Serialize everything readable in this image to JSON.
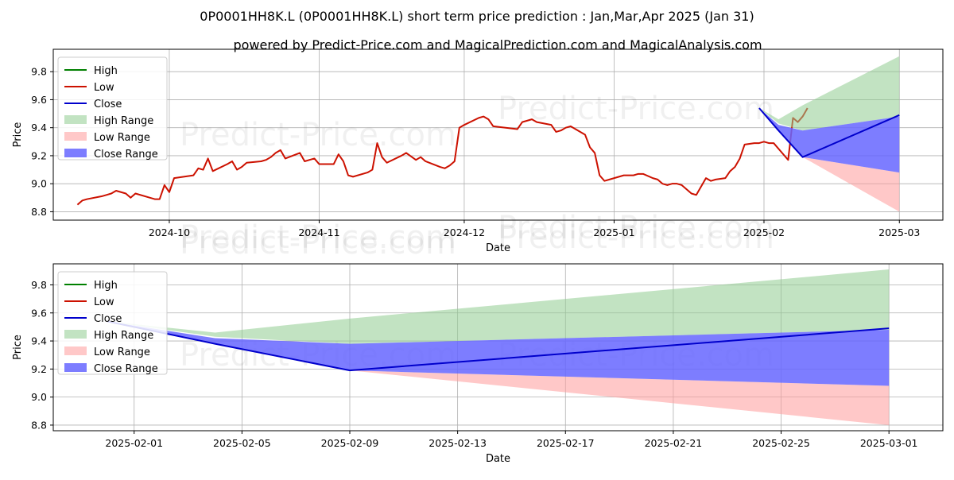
{
  "title": "0P0001HH8K.L (0P0001HH8K.L) short term price prediction : Jan,Mar,Apr 2025 (Jan 31)",
  "subtitle": "powered by Predict-Price.com and MagicalPrediction.com and MagicalAnalysis.com",
  "watermark": "Predict-Price.com",
  "legend_labels": [
    "High",
    "Low",
    "Close",
    "High Range",
    "Low Range",
    "Close Range"
  ],
  "colors": {
    "high": "#008000",
    "low": "#cc1100",
    "close": "#0000cc",
    "high_range": "#8fcc8f",
    "low_range": "#ff9a9a",
    "close_range": "#6666ff"
  },
  "chart_data": [
    {
      "type": "line",
      "xlabel": "Date",
      "ylabel": "Price",
      "xlim": [
        "2024-09-07",
        "2025-03-10"
      ],
      "ylim": [
        8.74,
        9.96
      ],
      "yticks": [
        8.8,
        9.0,
        9.2,
        9.4,
        9.6,
        9.8
      ],
      "ytick_labels": [
        "8.8",
        "9.0",
        "9.2",
        "9.4",
        "9.6",
        "9.8"
      ],
      "xticks": [
        "2024-10-01",
        "2024-11-01",
        "2024-12-01",
        "2025-01-01",
        "2025-02-01",
        "2025-03-01"
      ],
      "xtick_labels": [
        "2024-10",
        "2024-11",
        "2024-12",
        "2025-01",
        "2025-02",
        "2025-03"
      ],
      "grid": true,
      "legend_position": "upper-left",
      "series": [
        {
          "name": "Low",
          "style": "line",
          "points": [
            [
              "2024-09-12",
              8.85
            ],
            [
              "2024-09-13",
              8.88
            ],
            [
              "2024-09-14",
              8.89
            ],
            [
              "2024-09-17",
              8.91
            ],
            [
              "2024-09-18",
              8.92
            ],
            [
              "2024-09-19",
              8.93
            ],
            [
              "2024-09-20",
              8.95
            ],
            [
              "2024-09-21",
              8.94
            ],
            [
              "2024-09-22",
              8.93
            ],
            [
              "2024-09-23",
              8.9
            ],
            [
              "2024-09-24",
              8.93
            ],
            [
              "2024-09-27",
              8.9
            ],
            [
              "2024-09-28",
              8.89
            ],
            [
              "2024-09-29",
              8.89
            ],
            [
              "2024-09-30",
              8.99
            ],
            [
              "2024-10-01",
              8.94
            ],
            [
              "2024-10-02",
              9.04
            ],
            [
              "2024-10-04",
              9.05
            ],
            [
              "2024-10-06",
              9.06
            ],
            [
              "2024-10-07",
              9.11
            ],
            [
              "2024-10-08",
              9.1
            ],
            [
              "2024-10-09",
              9.18
            ],
            [
              "2024-10-10",
              9.09
            ],
            [
              "2024-10-13",
              9.14
            ],
            [
              "2024-10-14",
              9.16
            ],
            [
              "2024-10-15",
              9.1
            ],
            [
              "2024-10-16",
              9.12
            ],
            [
              "2024-10-17",
              9.15
            ],
            [
              "2024-10-20",
              9.16
            ],
            [
              "2024-10-21",
              9.17
            ],
            [
              "2024-10-22",
              9.19
            ],
            [
              "2024-10-23",
              9.22
            ],
            [
              "2024-10-24",
              9.24
            ],
            [
              "2024-10-25",
              9.18
            ],
            [
              "2024-10-28",
              9.22
            ],
            [
              "2024-10-29",
              9.16
            ],
            [
              "2024-10-30",
              9.17
            ],
            [
              "2024-10-31",
              9.18
            ],
            [
              "2024-11-01",
              9.14
            ],
            [
              "2024-11-04",
              9.14
            ],
            [
              "2024-11-05",
              9.21
            ],
            [
              "2024-11-06",
              9.16
            ],
            [
              "2024-11-07",
              9.06
            ],
            [
              "2024-11-08",
              9.05
            ],
            [
              "2024-11-11",
              9.08
            ],
            [
              "2024-11-12",
              9.1
            ],
            [
              "2024-11-13",
              9.29
            ],
            [
              "2024-11-14",
              9.19
            ],
            [
              "2024-11-15",
              9.15
            ],
            [
              "2024-11-18",
              9.2
            ],
            [
              "2024-11-19",
              9.22
            ],
            [
              "2024-11-21",
              9.17
            ],
            [
              "2024-11-22",
              9.19
            ],
            [
              "2024-11-23",
              9.16
            ],
            [
              "2024-11-26",
              9.12
            ],
            [
              "2024-11-27",
              9.11
            ],
            [
              "2024-11-28",
              9.13
            ],
            [
              "2024-11-29",
              9.16
            ],
            [
              "2024-11-30",
              9.4
            ],
            [
              "2024-12-01",
              9.42
            ],
            [
              "2024-12-04",
              9.47
            ],
            [
              "2024-12-05",
              9.48
            ],
            [
              "2024-12-06",
              9.46
            ],
            [
              "2024-12-07",
              9.41
            ],
            [
              "2024-12-12",
              9.39
            ],
            [
              "2024-12-13",
              9.44
            ],
            [
              "2024-12-14",
              9.45
            ],
            [
              "2024-12-15",
              9.46
            ],
            [
              "2024-12-16",
              9.44
            ],
            [
              "2024-12-19",
              9.42
            ],
            [
              "2024-12-20",
              9.37
            ],
            [
              "2024-12-21",
              9.38
            ],
            [
              "2024-12-22",
              9.4
            ],
            [
              "2024-12-23",
              9.41
            ],
            [
              "2024-12-26",
              9.35
            ],
            [
              "2024-12-27",
              9.26
            ],
            [
              "2024-12-28",
              9.22
            ],
            [
              "2024-12-29",
              9.06
            ],
            [
              "2024-12-30",
              9.02
            ],
            [
              "2025-01-03",
              9.06
            ],
            [
              "2025-01-04",
              9.06
            ],
            [
              "2025-01-05",
              9.06
            ],
            [
              "2025-01-06",
              9.07
            ],
            [
              "2025-01-07",
              9.07
            ],
            [
              "2025-01-09",
              9.04
            ],
            [
              "2025-01-10",
              9.03
            ],
            [
              "2025-01-11",
              9.0
            ],
            [
              "2025-01-12",
              8.99
            ],
            [
              "2025-01-13",
              9.0
            ],
            [
              "2025-01-14",
              9.0
            ],
            [
              "2025-01-15",
              8.99
            ],
            [
              "2025-01-17",
              8.93
            ],
            [
              "2025-01-18",
              8.92
            ],
            [
              "2025-01-20",
              9.04
            ],
            [
              "2025-01-21",
              9.02
            ],
            [
              "2025-01-22",
              9.03
            ],
            [
              "2025-01-24",
              9.04
            ],
            [
              "2025-01-25",
              9.09
            ],
            [
              "2025-01-26",
              9.12
            ],
            [
              "2025-01-27",
              9.18
            ],
            [
              "2025-01-28",
              9.28
            ],
            [
              "2025-01-30",
              9.29
            ],
            [
              "2025-01-31",
              9.29
            ],
            [
              "2025-02-01",
              9.3
            ],
            [
              "2025-02-02",
              9.29
            ],
            [
              "2025-02-03",
              9.29
            ],
            [
              "2025-02-06",
              9.17
            ],
            [
              "2025-02-07",
              9.47
            ],
            [
              "2025-02-08",
              9.44
            ],
            [
              "2025-02-09",
              9.48
            ],
            [
              "2025-02-10",
              9.54
            ]
          ]
        },
        {
          "name": "High Range",
          "style": "band",
          "points": [
            [
              "2025-01-31",
              9.54,
              9.54
            ],
            [
              "2025-02-04",
              9.43,
              9.46
            ],
            [
              "2025-02-09",
              9.38,
              9.56
            ],
            [
              "2025-03-01",
              9.48,
              9.91
            ]
          ]
        },
        {
          "name": "Low Range",
          "style": "band",
          "points": [
            [
              "2025-01-31",
              9.54,
              9.54
            ],
            [
              "2025-02-09",
              9.19,
              9.19
            ],
            [
              "2025-03-01",
              8.8,
              9.08
            ]
          ]
        },
        {
          "name": "Close Range",
          "style": "band",
          "points": [
            [
              "2025-01-31",
              9.54,
              9.54
            ],
            [
              "2025-02-04",
              9.38,
              9.42
            ],
            [
              "2025-02-09",
              9.19,
              9.38
            ],
            [
              "2025-03-01",
              9.08,
              9.48
            ]
          ]
        },
        {
          "name": "Close",
          "style": "line",
          "points": [
            [
              "2025-01-31",
              9.54
            ],
            [
              "2025-02-04",
              9.38
            ],
            [
              "2025-02-09",
              9.19
            ],
            [
              "2025-03-01",
              9.49
            ]
          ]
        }
      ]
    },
    {
      "type": "line",
      "xlabel": "Date",
      "ylabel": "Price",
      "xlim": [
        "2025-01-29",
        "2025-03-03"
      ],
      "ylim": [
        8.76,
        9.95
      ],
      "yticks": [
        8.8,
        9.0,
        9.2,
        9.4,
        9.6,
        9.8
      ],
      "ytick_labels": [
        "8.8",
        "9.0",
        "9.2",
        "9.4",
        "9.6",
        "9.8"
      ],
      "xticks": [
        "2025-02-01",
        "2025-02-05",
        "2025-02-09",
        "2025-02-13",
        "2025-02-17",
        "2025-02-21",
        "2025-02-25",
        "2025-03-01"
      ],
      "xtick_labels": [
        "2025-02-01",
        "2025-02-05",
        "2025-02-09",
        "2025-02-13",
        "2025-02-17",
        "2025-02-21",
        "2025-02-25",
        "2025-03-01"
      ],
      "grid": true,
      "legend_position": "upper-left",
      "series": [
        {
          "name": "High Range",
          "style": "band",
          "points": [
            [
              "2025-01-31",
              9.54,
              9.54
            ],
            [
              "2025-02-04",
              9.43,
              9.46
            ],
            [
              "2025-02-09",
              9.38,
              9.56
            ],
            [
              "2025-03-01",
              9.48,
              9.91
            ]
          ]
        },
        {
          "name": "Low Range",
          "style": "band",
          "points": [
            [
              "2025-01-31",
              9.54,
              9.54
            ],
            [
              "2025-02-09",
              9.19,
              9.19
            ],
            [
              "2025-03-01",
              8.8,
              9.08
            ]
          ]
        },
        {
          "name": "Close Range",
          "style": "band",
          "points": [
            [
              "2025-01-31",
              9.54,
              9.54
            ],
            [
              "2025-02-04",
              9.38,
              9.42
            ],
            [
              "2025-02-09",
              9.19,
              9.38
            ],
            [
              "2025-03-01",
              9.08,
              9.48
            ]
          ]
        },
        {
          "name": "Close",
          "style": "line",
          "points": [
            [
              "2025-01-31",
              9.54
            ],
            [
              "2025-02-04",
              9.38
            ],
            [
              "2025-02-09",
              9.19
            ],
            [
              "2025-03-01",
              9.49
            ]
          ]
        }
      ]
    }
  ]
}
